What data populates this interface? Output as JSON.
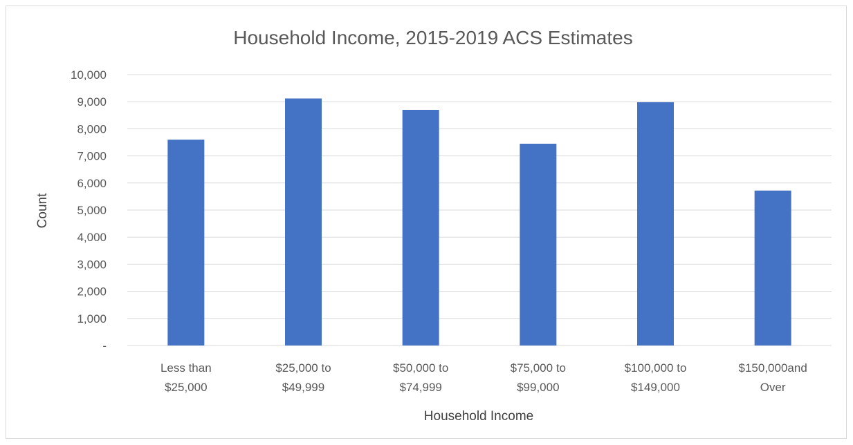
{
  "chart_data": {
    "type": "bar",
    "title": "Household Income, 2015-2019 ACS Estimates",
    "xlabel": "Household Income",
    "ylabel": "Count",
    "categories": [
      [
        "Less than",
        "$25,000"
      ],
      [
        "$25,000 to",
        "$49,999"
      ],
      [
        "$50,000 to",
        "$74,999"
      ],
      [
        "$75,000 to",
        "$99,000"
      ],
      [
        "$100,000 to",
        "$149,000"
      ],
      [
        "$150,000and",
        "Over"
      ]
    ],
    "values": [
      7600,
      9120,
      8700,
      7450,
      8980,
      5720
    ],
    "ylim": [
      0,
      10000
    ],
    "ytick_labels": [
      "-",
      "1,000",
      "2,000",
      "3,000",
      "4,000",
      "5,000",
      "6,000",
      "7,000",
      "8,000",
      "9,000",
      "10,000"
    ],
    "grid": true,
    "bar_color": "#4472c4"
  }
}
